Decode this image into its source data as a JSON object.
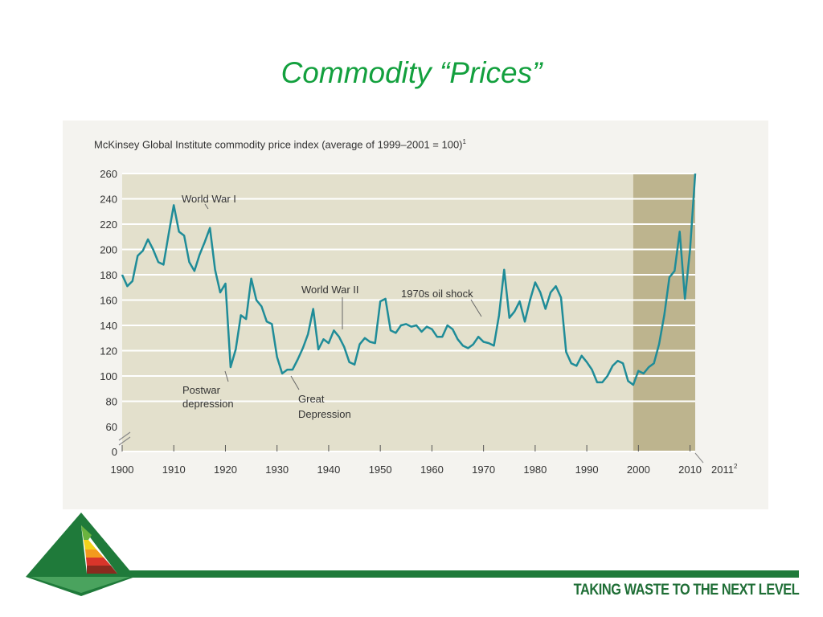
{
  "slide": {
    "title": "Commodity “Prices”",
    "tagline": "TAKING WASTE TO THE NEXT LEVEL"
  },
  "colors": {
    "title": "#13a03e",
    "line": "#1f8c98",
    "plot_background": "#e3e0cc",
    "shaded_region": "#bdb48e",
    "brand_green": "#1f7a3a"
  },
  "chart_data": {
    "type": "line",
    "title": "McKinsey Global Institute commodity price index (average of 1999–2001 = 100)",
    "title_footnote": "1",
    "xlabel": "",
    "ylabel": "",
    "xlim": [
      1900,
      2011
    ],
    "ylim": [
      60,
      260
    ],
    "yticks": [
      "260",
      "240",
      "220",
      "200",
      "180",
      "160",
      "140",
      "120",
      "100",
      "80",
      "60",
      "0"
    ],
    "xticks": [
      "1900",
      "1910",
      "1920",
      "1930",
      "1940",
      "1950",
      "1960",
      "1970",
      "1980",
      "1990",
      "2000",
      "2010"
    ],
    "last_tick": "2011",
    "last_tick_footnote": "2",
    "axis_break": true,
    "grid": true,
    "shaded_range": [
      1999,
      2011
    ],
    "series": [
      {
        "x": [
          1900,
          1901,
          1902,
          1903,
          1904,
          1905,
          1906,
          1907,
          1908,
          1909,
          1910,
          1911,
          1912,
          1913,
          1914,
          1915,
          1916,
          1917,
          1918,
          1919,
          1920,
          1921,
          1922,
          1923,
          1924,
          1925,
          1926,
          1927,
          1928,
          1929,
          1930,
          1931,
          1932,
          1933,
          1934,
          1935,
          1936,
          1937,
          1938,
          1939,
          1940,
          1941,
          1942,
          1943,
          1944,
          1945,
          1946,
          1947,
          1948,
          1949,
          1950,
          1951,
          1952,
          1953,
          1954,
          1955,
          1956,
          1957,
          1958,
          1959,
          1960,
          1961,
          1962,
          1963,
          1964,
          1965,
          1966,
          1967,
          1968,
          1969,
          1970,
          1971,
          1972,
          1973,
          1974,
          1975,
          1976,
          1977,
          1978,
          1979,
          1980,
          1981,
          1982,
          1983,
          1984,
          1985,
          1986,
          1987,
          1988,
          1989,
          1990,
          1991,
          1992,
          1993,
          1994,
          1995,
          1996,
          1997,
          1998,
          1999,
          2000,
          2001,
          2002,
          2003,
          2004,
          2005,
          2006,
          2007,
          2008,
          2009,
          2010,
          2011
        ],
        "values": [
          180,
          171,
          175,
          195,
          199,
          208,
          200,
          190,
          188,
          212,
          235,
          214,
          211,
          190,
          183,
          196,
          206,
          217,
          184,
          166,
          173,
          107,
          121,
          148,
          145,
          177,
          160,
          155,
          143,
          141,
          115,
          102,
          105,
          105,
          113,
          122,
          133,
          153,
          121,
          129,
          126,
          136,
          131,
          123,
          111,
          109,
          125,
          130,
          127,
          126,
          159,
          161,
          136,
          134,
          140,
          141,
          139,
          140,
          135,
          139,
          137,
          131,
          131,
          140,
          137,
          129,
          124,
          122,
          125,
          131,
          127,
          126,
          124,
          148,
          184,
          146,
          151,
          159,
          143,
          160,
          174,
          166,
          153,
          166,
          171,
          162,
          119,
          110,
          108,
          116,
          111,
          105,
          95,
          95,
          100,
          108,
          112,
          110,
          96,
          93,
          104,
          102,
          107,
          110,
          125,
          148,
          178,
          183,
          214,
          161,
          200,
          260
        ]
      }
    ],
    "annotations": [
      {
        "label": "World War I",
        "year": 1917
      },
      {
        "label": "Postwar depression",
        "year": 1921
      },
      {
        "label": "World War II",
        "year": 1942
      },
      {
        "label": "Great Depression",
        "year": 1932
      },
      {
        "label": "1970s oil shock",
        "year": 1974
      }
    ]
  }
}
